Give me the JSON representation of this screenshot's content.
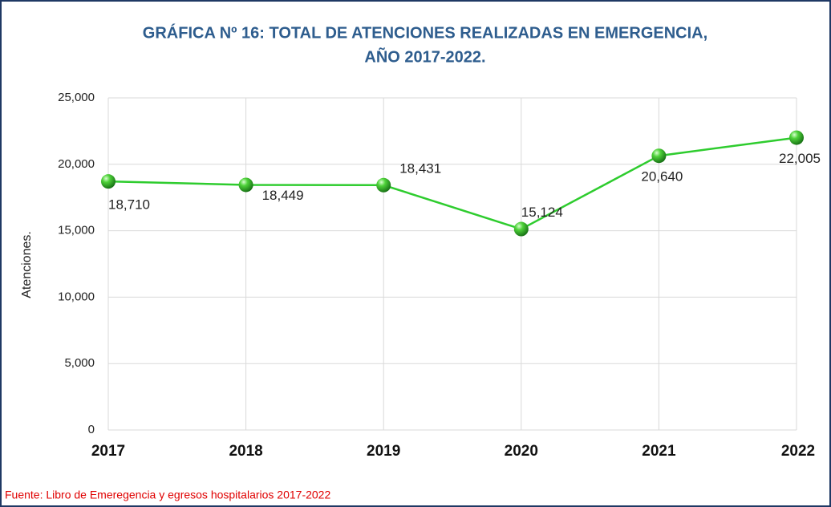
{
  "chart_data": {
    "type": "line",
    "title": [
      "GRÁFICA Nº 16: TOTAL DE ATENCIONES REALIZADAS EN EMERGENCIA,",
      "AÑO 2017-2022."
    ],
    "y_label": "Atenciones.",
    "source": "Fuente: Libro de Emeregencia y egresos hospitalarios  2017-2022",
    "categories": [
      "2017",
      "2018",
      "2019",
      "2020",
      "2021",
      "2022"
    ],
    "series": [
      {
        "name": "Atenciones",
        "color": "#2ecc2e",
        "values": [
          18710,
          18449,
          18431,
          15124,
          20640,
          22005
        ],
        "value_labels": [
          "18,710",
          "18,449",
          "18,431",
          "15,124",
          "20,640",
          "22,005"
        ]
      }
    ],
    "ylim": [
      0,
      25000
    ],
    "yticks": [
      0,
      {
        "value": 5000,
        "label": "5,000"
      },
      {
        "value": 10000,
        "label": "10,000"
      },
      {
        "value": 15000,
        "label": "15,000"
      },
      {
        "value": 20000,
        "label": "20,000"
      },
      {
        "value": 25000,
        "label": "25,000"
      }
    ],
    "grid": true
  }
}
